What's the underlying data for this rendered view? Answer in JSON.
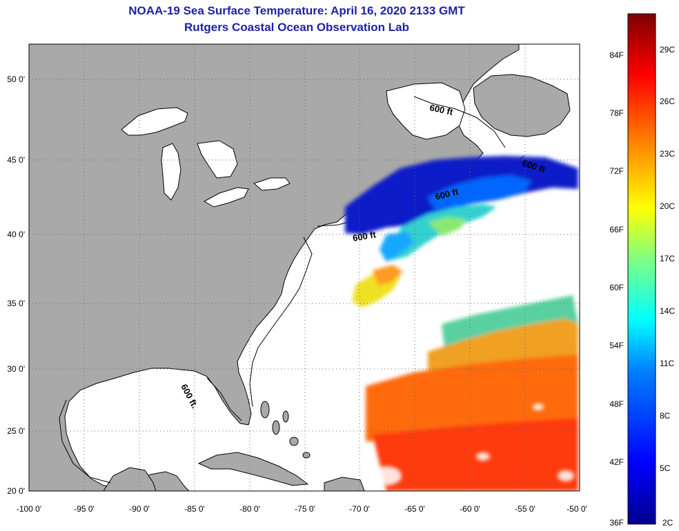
{
  "title": "NOAA-19 Sea Surface Temperature:  April 16, 2020 2133 GMT",
  "subtitle": "Rutgers Coastal Ocean Observation Lab",
  "lon_labels": [
    "-100 0'",
    "-95 0'",
    "-90 0'",
    "-85 0'",
    "-80 0'",
    "-75 0'",
    "-70 0'",
    "-65 0'",
    "-60 0'",
    "-55 0'",
    "-50 0'"
  ],
  "lat_labels": [
    "50 0'",
    "45 0'",
    "40 0'",
    "35 0'",
    "30 0'",
    "25 0'",
    "20 0'"
  ],
  "depth_labels": [
    "600 ft",
    "600 ft",
    "600 ft",
    "600 ft",
    "600 ft."
  ],
  "colorbar": {
    "f_labels": [
      "84F",
      "78F",
      "72F",
      "66F",
      "60F",
      "54F",
      "48F",
      "42F",
      "36F"
    ],
    "c_labels": [
      "29C",
      "26C",
      "23C",
      "20C",
      "17C",
      "14C",
      "11C",
      "8C",
      "5C",
      "2C"
    ]
  },
  "colors": {
    "land": "#a9a9a9",
    "ocean": "#ffffff",
    "title": "#1c22a6"
  }
}
